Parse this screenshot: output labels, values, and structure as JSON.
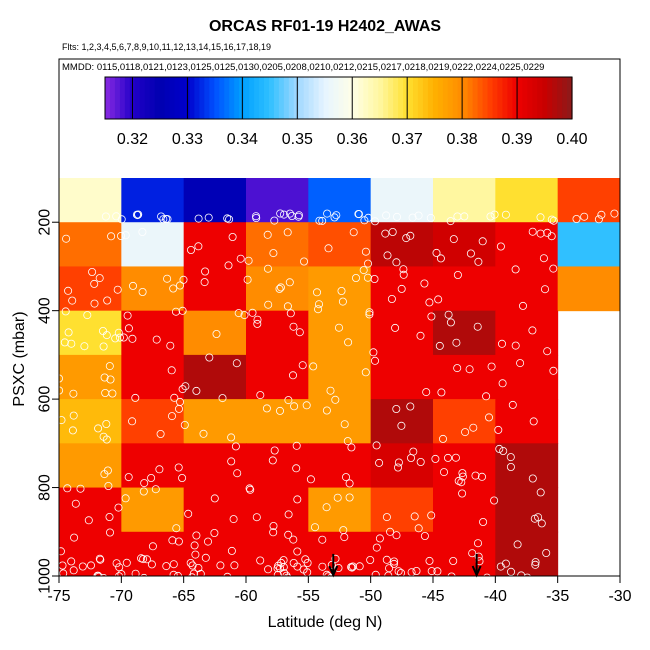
{
  "chart_data": {
    "type": "heatmap",
    "title": "ORCAS RF01-19 H2402_AWAS",
    "flights_label": "Flts: 1,2,3,4,5,6,7,8,9,10,11,12,13,14,15,16,17,18,19",
    "mmdd_label": "MMDD: 0115,0118,0121,0123,0125,0125,0130,0205,0208,0210,0212,0215,0217,0218,0219,0222,0224,0225,0229",
    "xlabel": "Latitude (deg N)",
    "ylabel": "PSXC (mbar)",
    "xlim": [
      -75,
      -30
    ],
    "ylim": [
      1000,
      100
    ],
    "xticks": [
      -75,
      -70,
      -65,
      -60,
      -55,
      -50,
      -45,
      -40,
      -35,
      -30
    ],
    "yticks": [
      200,
      400,
      600,
      800,
      1000
    ],
    "colorbar": {
      "range": [
        0.315,
        0.4
      ],
      "ticks": [
        "0.32",
        "0.33",
        "0.34",
        "0.35",
        "0.36",
        "0.37",
        "0.38",
        "0.39",
        "0.40"
      ],
      "tick_values": [
        0.32,
        0.33,
        0.34,
        0.35,
        0.36,
        0.37,
        0.38,
        0.39,
        0.4
      ],
      "stops": [
        {
          "v": 0.315,
          "c": "#8a2be2"
        },
        {
          "v": 0.32,
          "c": "#2200c8"
        },
        {
          "v": 0.325,
          "c": "#0000b0"
        },
        {
          "v": 0.33,
          "c": "#0000cd"
        },
        {
          "v": 0.335,
          "c": "#0050ff"
        },
        {
          "v": 0.34,
          "c": "#00a0ff"
        },
        {
          "v": 0.345,
          "c": "#30c0ff"
        },
        {
          "v": 0.35,
          "c": "#a0d8ff"
        },
        {
          "v": 0.355,
          "c": "#e6f4ff"
        },
        {
          "v": 0.36,
          "c": "#ffffe8"
        },
        {
          "v": 0.365,
          "c": "#fff7a0"
        },
        {
          "v": 0.37,
          "c": "#ffe030"
        },
        {
          "v": 0.375,
          "c": "#ffb000"
        },
        {
          "v": 0.38,
          "c": "#ff8c00"
        },
        {
          "v": 0.385,
          "c": "#ff4000"
        },
        {
          "v": 0.39,
          "c": "#ee0000"
        },
        {
          "v": 0.395,
          "c": "#c80000"
        },
        {
          "v": 0.4,
          "c": "#8b1a1a"
        }
      ]
    },
    "lat_bins": [
      -75,
      -70,
      -65,
      -60,
      -55,
      -50,
      -45,
      -40,
      -35,
      -30
    ],
    "pressure_bins": [
      100,
      200,
      300,
      400,
      500,
      600,
      700,
      800,
      900,
      1000
    ],
    "cells": [
      [
        0.362,
        0.332,
        0.326,
        0.318,
        0.336,
        0.356,
        0.365,
        0.37,
        0.385
      ],
      [
        0.382,
        0.356,
        0.39,
        0.382,
        0.384,
        0.396,
        0.394,
        0.39,
        0.345
      ],
      [
        0.385,
        0.38,
        0.39,
        0.38,
        0.378,
        0.39,
        0.39,
        0.39,
        0.38
      ],
      [
        0.37,
        0.39,
        0.38,
        0.39,
        0.378,
        0.39,
        0.397,
        0.39,
        null
      ],
      [
        0.378,
        0.39,
        0.397,
        0.39,
        0.378,
        0.39,
        0.39,
        0.39,
        null
      ],
      [
        0.374,
        0.385,
        0.378,
        0.378,
        0.378,
        0.397,
        0.385,
        0.39,
        null
      ],
      [
        0.378,
        0.39,
        0.39,
        0.39,
        0.39,
        0.393,
        0.39,
        0.397,
        null
      ],
      [
        0.39,
        0.378,
        0.39,
        0.39,
        0.378,
        0.385,
        0.39,
        0.397,
        null
      ],
      [
        0.39,
        0.39,
        0.39,
        0.39,
        0.39,
        0.39,
        0.39,
        0.397,
        null
      ]
    ],
    "arrows_at_lat": [
      -53,
      -41.5
    ]
  }
}
